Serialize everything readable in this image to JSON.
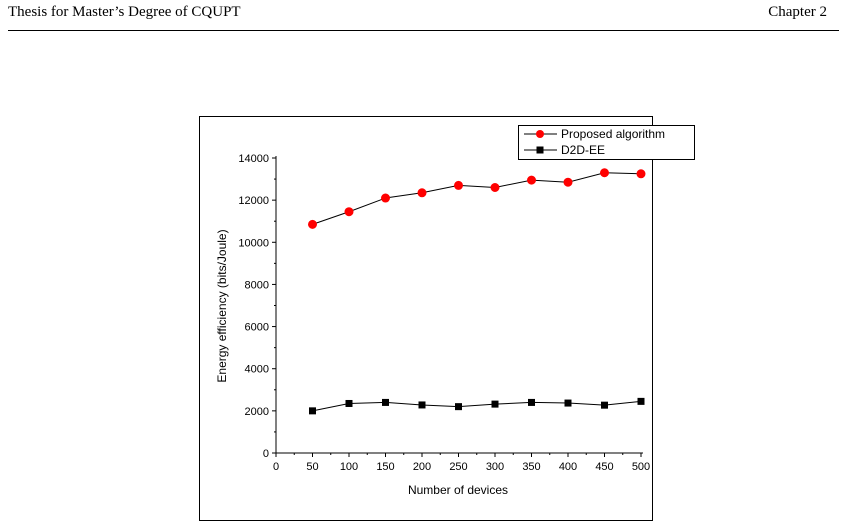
{
  "header": {
    "left": "Thesis for Master’s Degree of CQUPT",
    "right": "Chapter 2"
  },
  "chart_data": {
    "type": "line",
    "xlabel": "Number of devices",
    "ylabel": "Energy efficiency (bits/Joule)",
    "xlim": [
      0,
      500
    ],
    "ylim": [
      0,
      14000
    ],
    "x_ticks": [
      "0",
      "50",
      "100",
      "150",
      "200",
      "250",
      "300",
      "350",
      "400",
      "450",
      "500"
    ],
    "y_ticks": [
      "0",
      "2000",
      "4000",
      "6000",
      "8000",
      "10000",
      "12000",
      "14000"
    ],
    "x": [
      50,
      100,
      150,
      200,
      250,
      300,
      350,
      400,
      450,
      500
    ],
    "series": [
      {
        "name": "Proposed algorithm",
        "color": "#ff0000",
        "marker": "circle",
        "values": [
          10850,
          11450,
          12100,
          12350,
          12700,
          12600,
          12950,
          12850,
          13300,
          13250
        ]
      },
      {
        "name": "D2D-EE",
        "color": "#000000",
        "marker": "square",
        "values": [
          2000,
          2350,
          2400,
          2280,
          2200,
          2320,
          2400,
          2370,
          2270,
          2450
        ]
      }
    ],
    "legend_position": "top-right"
  }
}
